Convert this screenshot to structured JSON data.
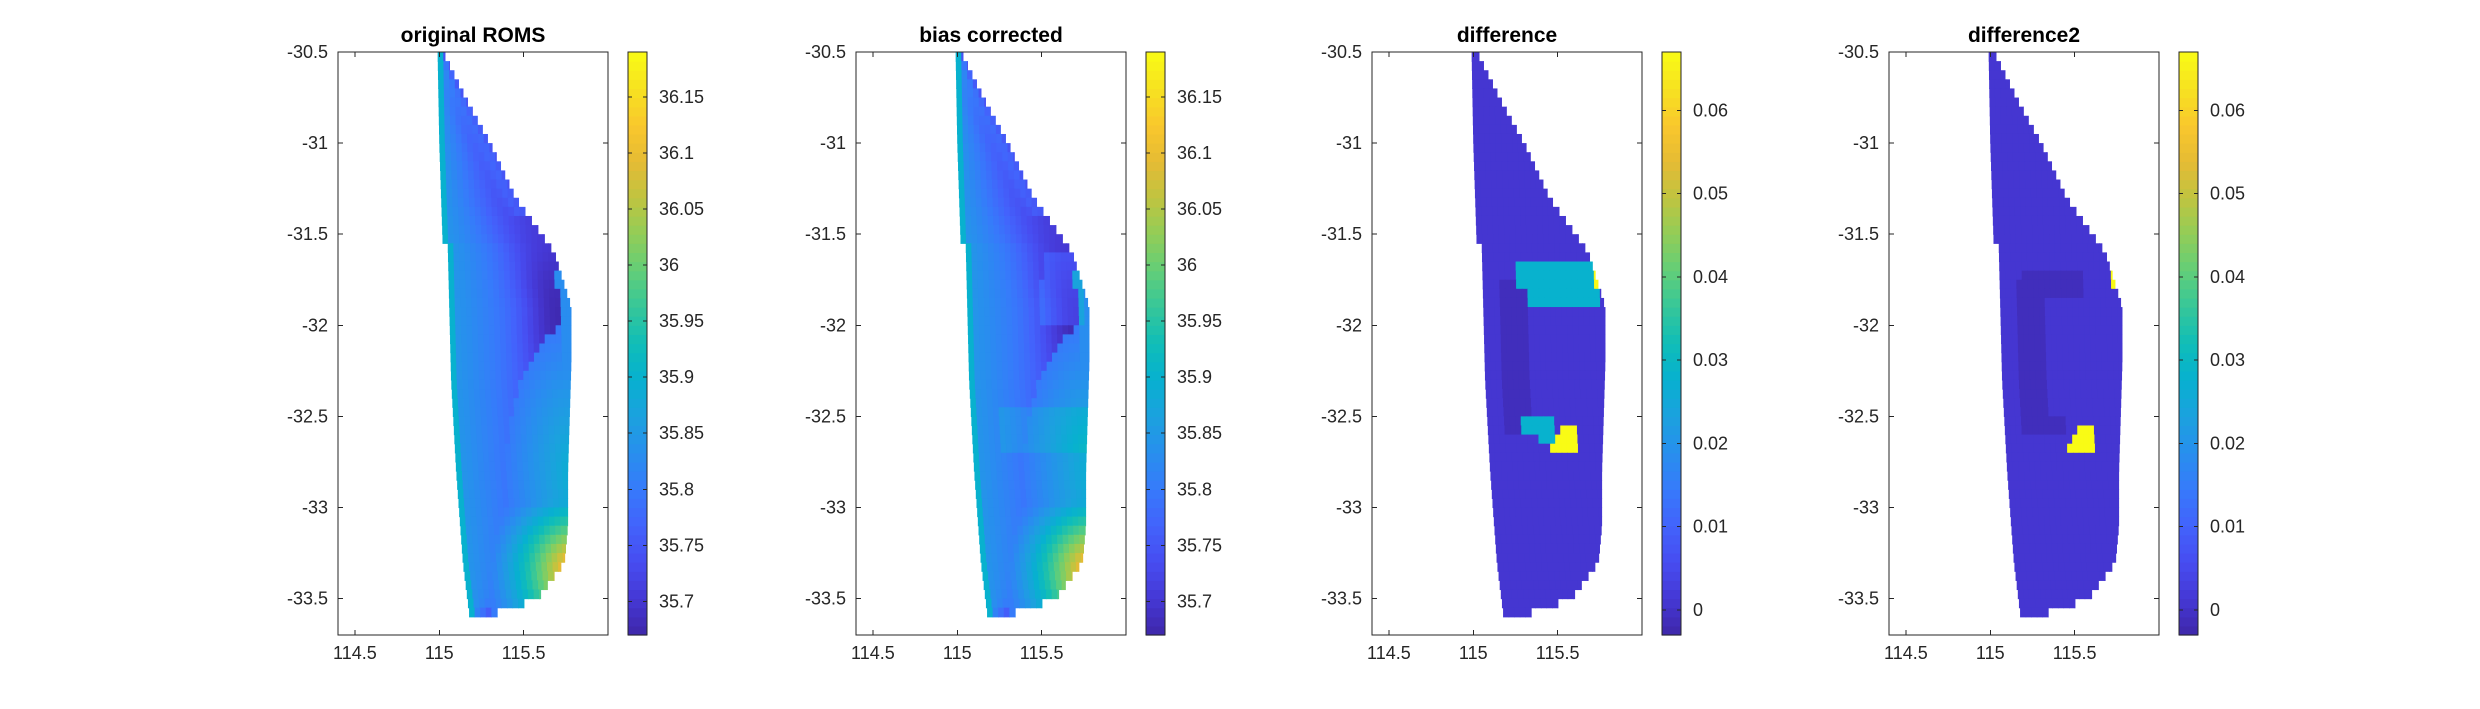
{
  "chart_data": [
    {
      "type": "heatmap",
      "title": "original ROMS",
      "xlim": [
        114.4,
        116.0
      ],
      "ylim": [
        -33.7,
        -30.5
      ],
      "x_ticks": [
        "114.5",
        "115",
        "115.5"
      ],
      "y_ticks": [
        "-30.5",
        "-31",
        "-31.5",
        "-32",
        "-32.5",
        "-33",
        "-33.5"
      ],
      "colorbar": {
        "clim": [
          35.67,
          36.19
        ],
        "ticks": [
          "35.7",
          "35.75",
          "35.8",
          "35.85",
          "35.9",
          "35.95",
          "36",
          "36.05",
          "36.1",
          "36.15"
        ],
        "colormap": "parula"
      },
      "domain_lon": 115.9,
      "coast": [
        [
          -30.5,
          115.02
        ],
        [
          -30.8,
          115.18
        ],
        [
          -31.0,
          115.3
        ],
        [
          -31.3,
          115.45
        ],
        [
          -31.6,
          115.68
        ],
        [
          -31.9,
          115.78
        ],
        [
          -32.2,
          115.78
        ],
        [
          -32.5,
          115.77
        ],
        [
          -32.8,
          115.76
        ],
        [
          -33.1,
          115.76
        ],
        [
          -33.3,
          115.74
        ],
        [
          -33.5,
          115.58
        ],
        [
          -33.62,
          115.2
        ],
        [
          -33.65,
          115.05
        ]
      ],
      "west": [
        [
          -30.5,
          114.99
        ],
        [
          -31.0,
          115.0
        ],
        [
          -31.55,
          115.02
        ],
        [
          -31.56,
          115.05
        ],
        [
          -32.3,
          115.07
        ],
        [
          -32.8,
          115.1
        ],
        [
          -33.3,
          115.14
        ],
        [
          -33.6,
          115.18
        ],
        [
          -33.65,
          115.22
        ]
      ],
      "field": "salinity"
    },
    {
      "type": "heatmap",
      "title": "bias corrected",
      "xlim": [
        114.4,
        116.0
      ],
      "ylim": [
        -33.7,
        -30.5
      ],
      "x_ticks": [
        "114.5",
        "115",
        "115.5"
      ],
      "y_ticks": [
        "-30.5",
        "-31",
        "-31.5",
        "-32",
        "-32.5",
        "-33",
        "-33.5"
      ],
      "colorbar": {
        "clim": [
          35.67,
          36.19
        ],
        "ticks": [
          "35.7",
          "35.75",
          "35.8",
          "35.85",
          "35.9",
          "35.95",
          "36",
          "36.05",
          "36.1",
          "36.15"
        ],
        "colormap": "parula"
      },
      "field": "salinity_corrected"
    },
    {
      "type": "heatmap",
      "title": "difference",
      "xlim": [
        114.4,
        116.0
      ],
      "ylim": [
        -33.7,
        -30.5
      ],
      "x_ticks": [
        "114.5",
        "115",
        "115.5"
      ],
      "y_ticks": [
        "-30.5",
        "-31",
        "-31.5",
        "-32",
        "-32.5",
        "-33",
        "-33.5"
      ],
      "colorbar": {
        "clim": [
          -0.003,
          0.067
        ],
        "ticks": [
          "0",
          "0.01",
          "0.02",
          "0.03",
          "0.04",
          "0.05",
          "0.06"
        ],
        "colormap": "parula"
      },
      "regions": [
        {
          "name": "background",
          "value": 0.001
        },
        {
          "name": "inner-band",
          "value": -0.001
        },
        {
          "name": "north-patch",
          "value": 0.028
        },
        {
          "name": "north-hot",
          "value": 0.067
        },
        {
          "name": "south-patch",
          "value": 0.028
        },
        {
          "name": "south-hot",
          "value": 0.067
        }
      ],
      "field": "difference"
    },
    {
      "type": "heatmap",
      "title": "difference2",
      "xlim": [
        114.4,
        116.0
      ],
      "ylim": [
        -33.7,
        -30.5
      ],
      "x_ticks": [
        "114.5",
        "115",
        "115.5"
      ],
      "y_ticks": [
        "-30.5",
        "-31",
        "-31.5",
        "-32",
        "-32.5",
        "-33",
        "-33.5"
      ],
      "colorbar": {
        "clim": [
          -0.003,
          0.067
        ],
        "ticks": [
          "0",
          "0.01",
          "0.02",
          "0.03",
          "0.04",
          "0.05",
          "0.06"
        ],
        "colormap": "parula"
      },
      "regions": [
        {
          "name": "background",
          "value": 0.001
        },
        {
          "name": "inner-band",
          "value": -0.001
        },
        {
          "name": "north-hot",
          "value": 0.067
        },
        {
          "name": "south-hot",
          "value": 0.067
        }
      ],
      "field": "difference2"
    }
  ]
}
